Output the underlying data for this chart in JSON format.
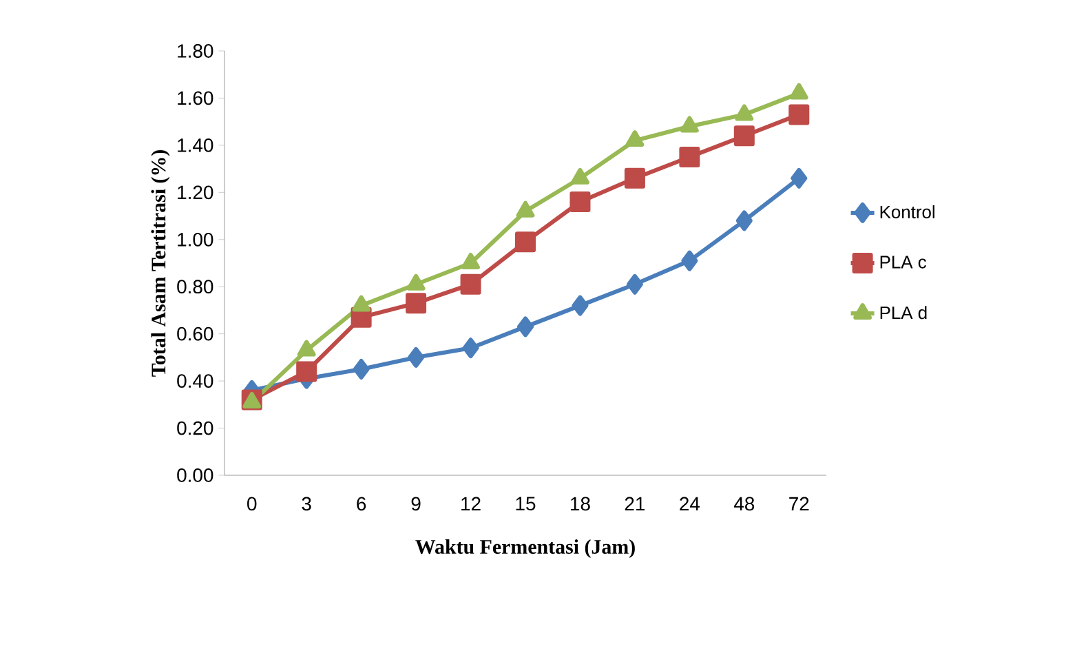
{
  "chart_data": {
    "type": "line",
    "xlabel": "Waktu Fermentasi (Jam)",
    "ylabel": "Total Asam Tertitrasi (%)",
    "categories": [
      "0",
      "3",
      "6",
      "9",
      "12",
      "15",
      "18",
      "21",
      "24",
      "48",
      "72"
    ],
    "series": [
      {
        "name": "Kontrol",
        "color": "#4a7ebb",
        "marker": "diamond",
        "values": [
          0.36,
          0.41,
          0.45,
          0.5,
          0.54,
          0.63,
          0.72,
          0.81,
          0.91,
          1.08,
          1.26
        ]
      },
      {
        "name": "PLA c",
        "color": "#be4b48",
        "marker": "square",
        "values": [
          0.32,
          0.44,
          0.67,
          0.73,
          0.81,
          0.99,
          1.16,
          1.26,
          1.35,
          1.44,
          1.53
        ]
      },
      {
        "name": "PLA d",
        "color": "#98b954",
        "marker": "triangle",
        "values": [
          0.31,
          0.53,
          0.72,
          0.81,
          0.9,
          1.12,
          1.26,
          1.42,
          1.48,
          1.53,
          1.62
        ]
      }
    ],
    "ylim": [
      0,
      1.8
    ],
    "yticks": [
      {
        "value": 0,
        "label": "0.00"
      },
      {
        "value": 0.2,
        "label": "0.20"
      },
      {
        "value": 0.4,
        "label": "0.40"
      },
      {
        "value": 0.6,
        "label": "0.60"
      },
      {
        "value": 0.8,
        "label": "0.80"
      },
      {
        "value": 1.0,
        "label": "1.00"
      },
      {
        "value": 1.2,
        "label": "1.20"
      },
      {
        "value": 1.4,
        "label": "1.40"
      },
      {
        "value": 1.6,
        "label": "1.60"
      },
      {
        "value": 1.8,
        "label": "1.80"
      }
    ],
    "grid": false,
    "legend": "right",
    "line_style": "solid"
  }
}
